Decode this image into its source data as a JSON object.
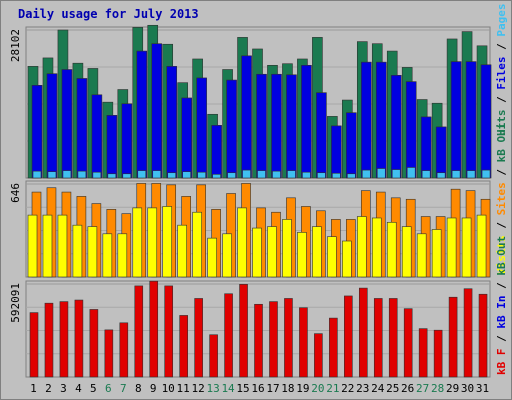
{
  "chart_data": {
    "type": "bar",
    "title": "Daily usage for July 2013",
    "categories": [
      "1",
      "2",
      "3",
      "4",
      "5",
      "6",
      "7",
      "8",
      "9",
      "10",
      "11",
      "12",
      "13",
      "14",
      "15",
      "16",
      "17",
      "18",
      "19",
      "20",
      "21",
      "22",
      "23",
      "24",
      "25",
      "26",
      "27",
      "28",
      "29",
      "30",
      "31"
    ],
    "weekend_days": [
      6,
      7,
      13,
      14,
      20,
      21,
      27,
      28
    ],
    "colors": {
      "hits": "#1a7a50",
      "files": "#0000e0",
      "pages": "#40c0f0",
      "visits": "#ffff00",
      "sites": "#ff8a00",
      "kb_in": "#1a7a50",
      "kb_out": "#0000e0",
      "kb_f": "#e00000",
      "weekday_label": "#000000",
      "weekend_label": "#1a7a50",
      "title": "#0000b0"
    },
    "panels": [
      {
        "ymax_label": "28102",
        "ymax": 28102,
        "legend": [
          {
            "text": "Hits",
            "color": "#1a7a50"
          },
          {
            "text": " / ",
            "color": "#000000"
          },
          {
            "text": "Files",
            "color": "#0000e0"
          },
          {
            "text": " / ",
            "color": "#000000"
          },
          {
            "text": "Pages",
            "color": "#40c0f0"
          }
        ],
        "series": [
          {
            "name": "Hits",
            "color": "#1a7a50",
            "values": [
              21200,
              22800,
              28100,
              21800,
              20800,
              14400,
              16800,
              28600,
              29000,
              25400,
              18100,
              22600,
              12100,
              20600,
              26700,
              24500,
              21400,
              21700,
              22600,
              26700,
              11700,
              14800,
              25900,
              25500,
              24100,
              21000,
              14900,
              14200,
              26400,
              27800,
              25100
            ]
          },
          {
            "name": "Files",
            "color": "#0000e0",
            "values": [
              17600,
              19800,
              20600,
              18900,
              15800,
              11900,
              14100,
              24100,
              25500,
              21200,
              15200,
              19000,
              10000,
              18600,
              23200,
              19700,
              19700,
              19600,
              21400,
              16200,
              9900,
              12400,
              22000,
              22000,
              19500,
              18300,
              11600,
              9700,
              22100,
              22100,
              21500
            ]
          },
          {
            "name": "Pages",
            "color": "#40c0f0",
            "values": [
              1300,
              1200,
              1400,
              1300,
              1100,
              800,
              800,
              1400,
              1400,
              1000,
              1200,
              1100,
              700,
              1000,
              1500,
              1400,
              1300,
              1400,
              1100,
              1000,
              900,
              800,
              1500,
              1800,
              1600,
              2000,
              1400,
              1000,
              1400,
              1400,
              1500
            ]
          }
        ]
      },
      {
        "ymax_label": "646",
        "ymax": 646,
        "legend": [
          {
            "text": "Visits",
            "color": "#ffff00"
          },
          {
            "text": " / ",
            "color": "#000000"
          },
          {
            "text": "Sites",
            "color": "#ff8a00"
          },
          {
            "text": " / ",
            "color": "#000000"
          },
          {
            "text": "kB Out",
            "color": "#1a7a50"
          }
        ],
        "series": [
          {
            "name": "Sites",
            "color": "#ff8a00",
            "values": [
              590,
              620,
              590,
              560,
              510,
              470,
              440,
              650,
              650,
              640,
              560,
              640,
              470,
              580,
              650,
              480,
              450,
              550,
              490,
              460,
              400,
              400,
              600,
              590,
              550,
              540,
              420,
              420,
              610,
              600,
              540
            ]
          },
          {
            "name": "Visits",
            "color": "#ffff00",
            "values": [
              430,
              430,
              430,
              360,
              350,
              300,
              300,
              480,
              480,
              490,
              360,
              450,
              270,
              300,
              480,
              340,
              350,
              400,
              310,
              350,
              280,
              250,
              420,
              410,
              380,
              350,
              300,
              330,
              410,
              410,
              430
            ]
          }
        ]
      },
      {
        "ymax_label": "592091",
        "ymax": 592091,
        "legend": [
          {
            "text": "kB F",
            "color": "#e00000"
          },
          {
            "text": " / ",
            "color": "#000000"
          },
          {
            "text": "kB In",
            "color": "#0000e0"
          },
          {
            "text": " / ",
            "color": "#000000"
          },
          {
            "text": "kB Out",
            "color": "#1a7a50"
          }
        ],
        "series": [
          {
            "name": "kB F",
            "color": "#e00000",
            "values": [
              410000,
              470000,
              480000,
              490000,
              430000,
              300000,
              345000,
              580000,
              610000,
              580000,
              392000,
              500000,
              269000,
              530000,
              590000,
              463000,
              480000,
              500000,
              441000,
              276000,
              375000,
              516000,
              566000,
              500000,
              500000,
              435000,
              308000,
              298000,
              508000,
              562000,
              527000
            ]
          }
        ]
      }
    ]
  }
}
